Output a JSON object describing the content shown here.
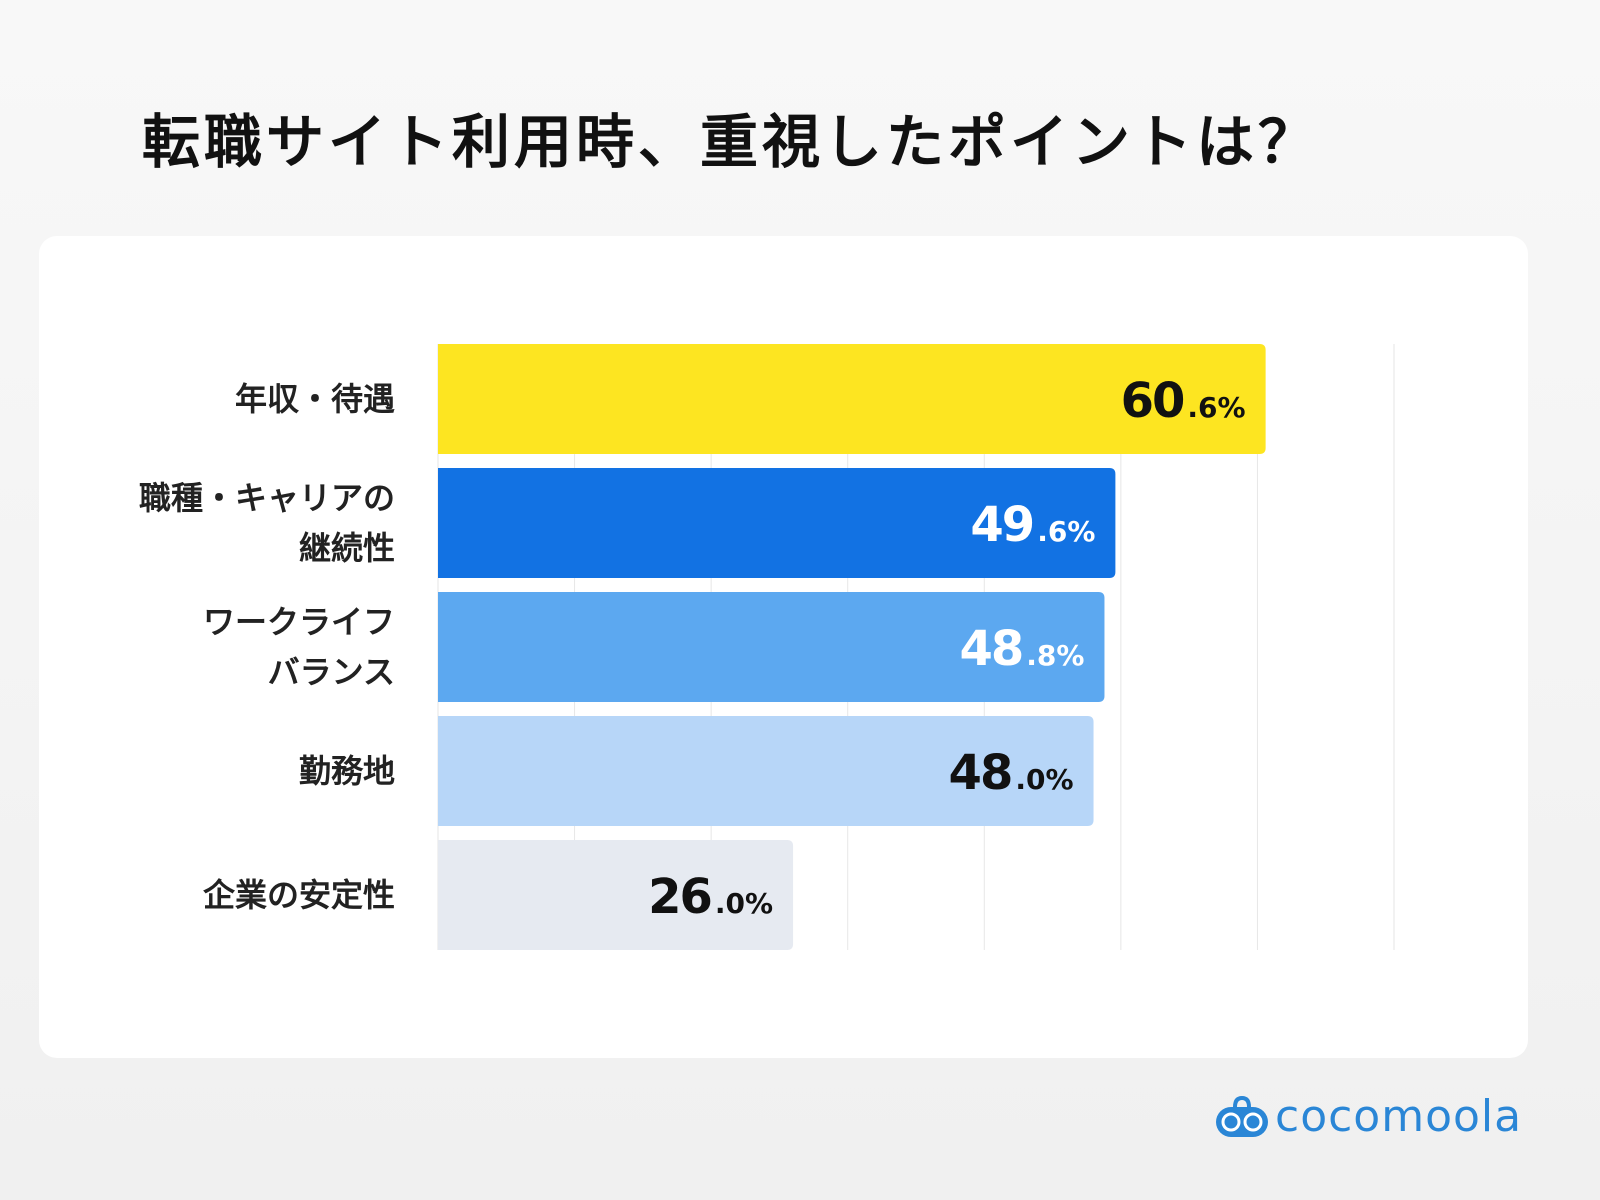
{
  "title": "転職サイト利用時、重視したポイントは？",
  "chart_data": {
    "type": "bar",
    "orientation": "horizontal",
    "title": "転職サイト利用時、重視したポイントは？",
    "categories": [
      "年収・待遇",
      "職種・キャリアの\n継続性",
      "ワークライフ\nバランス",
      "勤務地",
      "企業の安定性"
    ],
    "values": [
      60.6,
      49.6,
      48.8,
      48.0,
      26.0
    ],
    "unit": "%",
    "xlim": [
      0,
      70
    ],
    "grid": true,
    "grid_step": 10,
    "bar_colors": [
      "#FDE521",
      "#1272E3",
      "#5CA8F0",
      "#B7D6F8",
      "#E6EAF1"
    ],
    "label_colors": [
      "#111111",
      "#FFFFFF",
      "#FFFFFF",
      "#111111",
      "#111111"
    ]
  },
  "logo": {
    "text": "cocomoola",
    "color": "#2A86D6"
  }
}
